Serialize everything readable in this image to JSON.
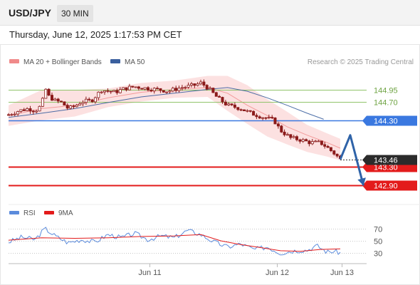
{
  "header": {
    "symbol": "USD/JPY",
    "timeframe": "30 MIN"
  },
  "datetime": "Thursday, June 12, 2025 1:17:53 PM CET",
  "legend": {
    "bollinger_label": "MA 20 + Bollinger Bands",
    "ma50_label": "MA 50",
    "copyright": "Research © 2025 Trading Central"
  },
  "rsi_legend": {
    "rsi_label": "RSI",
    "ma9_label": "9MA"
  },
  "colors": {
    "resistance": "#90c46b",
    "pivot": "#3a78e0",
    "support": "#e31b1b",
    "arrow": "#2f63a8",
    "bollinger": "#f08a8a",
    "bollinger_fill": "#fbdcdc",
    "ma50": "#3a5f9e",
    "candle": "#8b1a1a",
    "rsi": "#5b8bdc",
    "rsi_ma": "#e31b1b"
  },
  "chart_data": [
    {
      "type": "candlestick",
      "x_ticks": [
        "Jun 11",
        "Jun 12",
        "Jun 13"
      ],
      "ylim": [
        142.6,
        145.35
      ],
      "levels": [
        {
          "label": "144.95",
          "value": 144.95,
          "kind": "resistance"
        },
        {
          "label": "144.70",
          "value": 144.7,
          "kind": "resistance"
        },
        {
          "label": "144.30",
          "value": 144.3,
          "kind": "pivot"
        },
        {
          "label": "143.30",
          "value": 143.3,
          "kind": "support"
        },
        {
          "label": "142.90",
          "value": 142.9,
          "kind": "support"
        }
      ],
      "last_price": {
        "label": "143.46",
        "value": 143.46
      },
      "close_path": [
        {
          "t": 0,
          "v": 144.42
        },
        {
          "t": 3,
          "v": 144.5
        },
        {
          "t": 6,
          "v": 144.55
        },
        {
          "t": 8,
          "v": 144.5
        },
        {
          "t": 10,
          "v": 144.62
        },
        {
          "t": 11,
          "v": 145.0
        },
        {
          "t": 12,
          "v": 144.82
        },
        {
          "t": 14,
          "v": 144.72
        },
        {
          "t": 16,
          "v": 144.68
        },
        {
          "t": 18,
          "v": 144.55
        },
        {
          "t": 20,
          "v": 144.6
        },
        {
          "t": 22,
          "v": 144.7
        },
        {
          "t": 25,
          "v": 144.72
        },
        {
          "t": 28,
          "v": 144.95
        },
        {
          "t": 32,
          "v": 144.9
        },
        {
          "t": 35,
          "v": 144.98
        },
        {
          "t": 38,
          "v": 145.02
        },
        {
          "t": 42,
          "v": 144.98
        },
        {
          "t": 46,
          "v": 144.95
        },
        {
          "t": 48,
          "v": 144.92
        },
        {
          "t": 52,
          "v": 145.0
        },
        {
          "t": 56,
          "v": 145.05
        },
        {
          "t": 58,
          "v": 145.1
        },
        {
          "t": 60,
          "v": 145.0
        },
        {
          "t": 63,
          "v": 144.78
        },
        {
          "t": 66,
          "v": 144.62
        },
        {
          "t": 70,
          "v": 144.55
        },
        {
          "t": 73,
          "v": 144.45
        },
        {
          "t": 76,
          "v": 144.38
        },
        {
          "t": 80,
          "v": 144.3
        },
        {
          "t": 82,
          "v": 144.08
        },
        {
          "t": 85,
          "v": 143.92
        },
        {
          "t": 88,
          "v": 143.88
        },
        {
          "t": 91,
          "v": 143.82
        },
        {
          "t": 94,
          "v": 143.82
        },
        {
          "t": 96,
          "v": 143.72
        },
        {
          "t": 98,
          "v": 143.6
        },
        {
          "t": 100,
          "v": 143.46
        }
      ],
      "bollinger": {
        "mid": [
          {
            "t": 0,
            "v": 144.4
          },
          {
            "t": 10,
            "v": 144.55
          },
          {
            "t": 20,
            "v": 144.62
          },
          {
            "t": 30,
            "v": 144.78
          },
          {
            "t": 40,
            "v": 144.9
          },
          {
            "t": 50,
            "v": 144.96
          },
          {
            "t": 60,
            "v": 145.0
          },
          {
            "t": 66,
            "v": 144.88
          },
          {
            "t": 72,
            "v": 144.62
          },
          {
            "t": 78,
            "v": 144.4
          },
          {
            "t": 84,
            "v": 144.16
          },
          {
            "t": 90,
            "v": 143.98
          },
          {
            "t": 96,
            "v": 143.82
          },
          {
            "t": 100,
            "v": 143.7
          }
        ],
        "upper": [
          {
            "t": 0,
            "v": 144.62
          },
          {
            "t": 10,
            "v": 144.95
          },
          {
            "t": 20,
            "v": 144.95
          },
          {
            "t": 30,
            "v": 144.98
          },
          {
            "t": 40,
            "v": 145.1
          },
          {
            "t": 50,
            "v": 145.15
          },
          {
            "t": 60,
            "v": 145.25
          },
          {
            "t": 66,
            "v": 145.25
          },
          {
            "t": 72,
            "v": 145.05
          },
          {
            "t": 78,
            "v": 144.75
          },
          {
            "t": 84,
            "v": 144.48
          },
          {
            "t": 90,
            "v": 144.2
          },
          {
            "t": 96,
            "v": 144.02
          },
          {
            "t": 100,
            "v": 143.9
          }
        ],
        "lower": [
          {
            "t": 0,
            "v": 144.18
          },
          {
            "t": 10,
            "v": 144.3
          },
          {
            "t": 20,
            "v": 144.38
          },
          {
            "t": 30,
            "v": 144.58
          },
          {
            "t": 40,
            "v": 144.7
          },
          {
            "t": 50,
            "v": 144.78
          },
          {
            "t": 60,
            "v": 144.8
          },
          {
            "t": 66,
            "v": 144.5
          },
          {
            "t": 72,
            "v": 144.22
          },
          {
            "t": 78,
            "v": 143.95
          },
          {
            "t": 84,
            "v": 143.78
          },
          {
            "t": 90,
            "v": 143.62
          },
          {
            "t": 96,
            "v": 143.52
          },
          {
            "t": 100,
            "v": 143.44
          }
        ]
      },
      "ma50": [
        {
          "t": 0,
          "v": 144.36
        },
        {
          "t": 10,
          "v": 144.45
        },
        {
          "t": 20,
          "v": 144.55
        },
        {
          "t": 30,
          "v": 144.68
        },
        {
          "t": 40,
          "v": 144.8
        },
        {
          "t": 50,
          "v": 144.88
        },
        {
          "t": 60,
          "v": 144.96
        },
        {
          "t": 66,
          "v": 145.0
        },
        {
          "t": 72,
          "v": 144.92
        },
        {
          "t": 78,
          "v": 144.78
        },
        {
          "t": 84,
          "v": 144.62
        },
        {
          "t": 90,
          "v": 144.45
        },
        {
          "t": 95,
          "v": 144.32
        }
      ],
      "projection": [
        {
          "t": 100,
          "v": 143.46
        },
        {
          "t": 103,
          "v": 143.98
        },
        {
          "t": 107,
          "v": 142.9
        }
      ]
    },
    {
      "type": "line",
      "name": "RSI",
      "y_ticks": [
        "70",
        "50",
        "30"
      ],
      "ylim": [
        20,
        80
      ],
      "rsi": [
        {
          "t": 0,
          "v": 48
        },
        {
          "t": 4,
          "v": 56
        },
        {
          "t": 8,
          "v": 52
        },
        {
          "t": 11,
          "v": 70
        },
        {
          "t": 14,
          "v": 58
        },
        {
          "t": 18,
          "v": 47
        },
        {
          "t": 22,
          "v": 52
        },
        {
          "t": 26,
          "v": 48
        },
        {
          "t": 30,
          "v": 60
        },
        {
          "t": 34,
          "v": 55
        },
        {
          "t": 38,
          "v": 62
        },
        {
          "t": 42,
          "v": 52
        },
        {
          "t": 46,
          "v": 58
        },
        {
          "t": 50,
          "v": 55
        },
        {
          "t": 54,
          "v": 67
        },
        {
          "t": 58,
          "v": 60
        },
        {
          "t": 62,
          "v": 48
        },
        {
          "t": 66,
          "v": 40
        },
        {
          "t": 70,
          "v": 45
        },
        {
          "t": 74,
          "v": 36
        },
        {
          "t": 78,
          "v": 40
        },
        {
          "t": 82,
          "v": 30
        },
        {
          "t": 86,
          "v": 34
        },
        {
          "t": 90,
          "v": 35
        },
        {
          "t": 93,
          "v": 42
        },
        {
          "t": 96,
          "v": 32
        },
        {
          "t": 98,
          "v": 33
        },
        {
          "t": 100,
          "v": 31
        }
      ],
      "rsi_ma": [
        {
          "t": 0,
          "v": 51
        },
        {
          "t": 10,
          "v": 55
        },
        {
          "t": 20,
          "v": 54
        },
        {
          "t": 30,
          "v": 55
        },
        {
          "t": 40,
          "v": 57
        },
        {
          "t": 50,
          "v": 58
        },
        {
          "t": 58,
          "v": 60
        },
        {
          "t": 64,
          "v": 50
        },
        {
          "t": 70,
          "v": 44
        },
        {
          "t": 76,
          "v": 39
        },
        {
          "t": 82,
          "v": 34
        },
        {
          "t": 88,
          "v": 33
        },
        {
          "t": 94,
          "v": 36
        },
        {
          "t": 100,
          "v": 37
        }
      ]
    }
  ]
}
